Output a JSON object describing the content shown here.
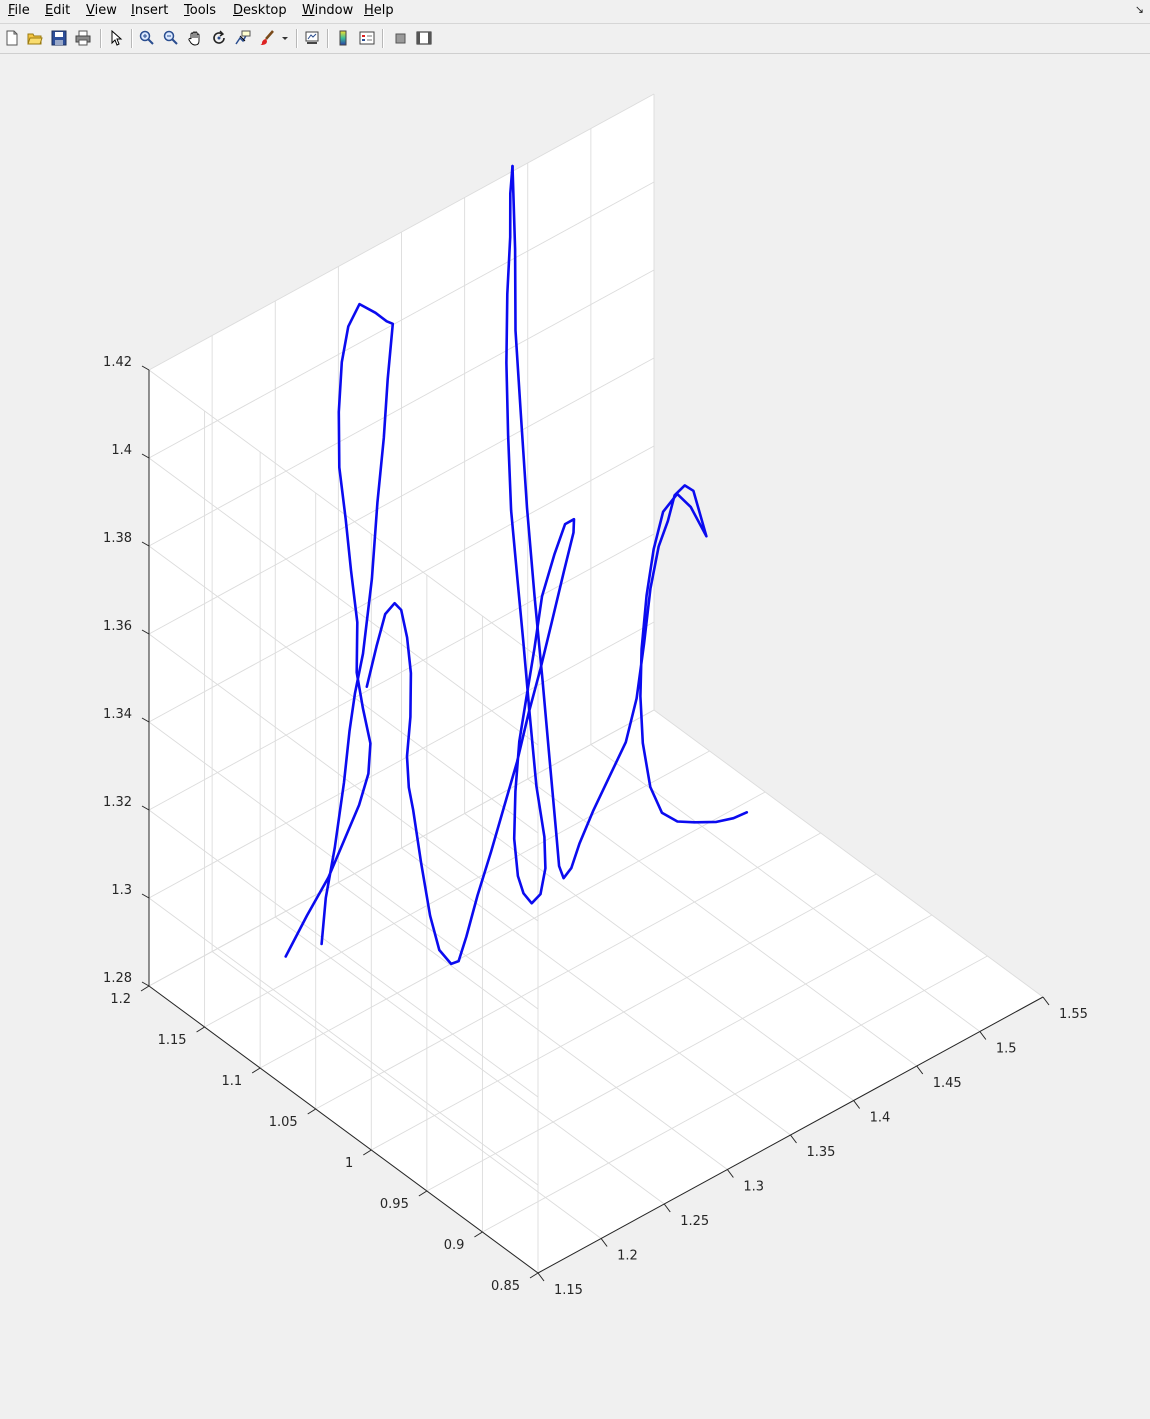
{
  "menu": {
    "file": "File",
    "edit": "Edit",
    "view": "View",
    "insert": "Insert",
    "tools": "Tools",
    "desktop": "Desktop",
    "window": "Window",
    "help": "Help"
  },
  "toolbar_icons": [
    "new-figure-icon",
    "open-file-icon",
    "save-icon",
    "print-icon",
    "edit-plot-icon",
    "zoom-in-icon",
    "zoom-out-icon",
    "pan-icon",
    "rotate-3d-icon",
    "data-cursor-icon",
    "brush-icon",
    "link-plot-icon",
    "colorbar-icon",
    "legend-icon",
    "hide-plot-tools-icon",
    "show-plot-tools-icon"
  ],
  "colors": {
    "line": "#0b0bef",
    "axes_background": "#ffffff",
    "figure_background": "#f0f0f0",
    "grid": "#dcdcdc",
    "axis": "#262626"
  },
  "chart_data": {
    "type": "line",
    "projection": "3d",
    "view": {
      "azimuth": -37.5,
      "elevation": 30
    },
    "grid": true,
    "box": false,
    "title": "",
    "xlabel": "",
    "ylabel": "",
    "zlabel": "",
    "xlim": [
      1.15,
      1.55
    ],
    "ylim": [
      0.85,
      1.2
    ],
    "zlim": [
      1.28,
      1.42
    ],
    "xticks": [
      1.15,
      1.2,
      1.25,
      1.3,
      1.35,
      1.4,
      1.45,
      1.5,
      1.55
    ],
    "xtick_labels": [
      "1.15",
      "1.2",
      "1.25",
      "1.3",
      "1.35",
      "1.4",
      "1.45",
      "1.5",
      "1.55"
    ],
    "yticks": [
      0.85,
      0.9,
      0.95,
      1,
      1.05,
      1.1,
      1.15,
      1.2
    ],
    "ytick_labels": [
      "0.85",
      "0.9",
      "0.95",
      "1",
      "1.05",
      "1.1",
      "1.15",
      "1.2"
    ],
    "zticks": [
      1.28,
      1.3,
      1.32,
      1.34,
      1.36,
      1.38,
      1.4,
      1.42
    ],
    "ztick_labels": [
      "1.28",
      "1.3",
      "1.32",
      "1.34",
      "1.36",
      "1.38",
      "1.4",
      "1.42"
    ],
    "series": [
      {
        "points": [
          [
            1.187,
            1.119,
            1.296
          ],
          [
            1.203,
            1.118,
            1.303
          ],
          [
            1.22,
            1.118,
            1.309
          ],
          [
            1.233,
            1.119,
            1.315
          ],
          [
            1.246,
            1.12,
            1.321
          ],
          [
            1.256,
            1.123,
            1.326
          ],
          [
            1.262,
            1.128,
            1.331
          ],
          [
            1.264,
            1.137,
            1.337
          ],
          [
            1.267,
            1.146,
            1.343
          ],
          [
            1.271,
            1.15,
            1.353
          ],
          [
            1.273,
            1.158,
            1.363
          ],
          [
            1.275,
            1.165,
            1.373
          ],
          [
            1.277,
            1.173,
            1.383
          ],
          [
            1.281,
            1.178,
            1.394
          ],
          [
            1.286,
            1.181,
            1.404
          ],
          [
            1.292,
            1.182,
            1.411
          ],
          [
            1.3,
            1.181,
            1.415
          ],
          [
            1.31,
            1.178,
            1.412
          ],
          [
            1.318,
            1.177,
            1.409
          ],
          [
            1.322,
            1.176,
            1.408
          ],
          [
            1.31,
            1.167,
            1.399
          ],
          [
            1.299,
            1.158,
            1.389
          ],
          [
            1.286,
            1.149,
            1.378
          ],
          [
            1.272,
            1.138,
            1.365
          ],
          [
            1.257,
            1.129,
            1.352
          ],
          [
            1.248,
            1.126,
            1.345
          ],
          [
            1.241,
            1.123,
            1.338
          ],
          [
            1.234,
            1.12,
            1.328
          ],
          [
            1.225,
            1.118,
            1.315
          ],
          [
            1.217,
            1.117,
            1.305
          ],
          [
            1.211,
            1.114,
            1.296
          ]
        ]
      },
      {
        "points": [
          [
            1.26,
            1.129,
            1.344
          ],
          [
            1.273,
            1.135,
            1.35
          ],
          [
            1.286,
            1.142,
            1.354
          ],
          [
            1.297,
            1.146,
            1.354
          ],
          [
            1.304,
            1.148,
            1.351
          ],
          [
            1.306,
            1.145,
            1.345
          ],
          [
            1.302,
            1.137,
            1.339
          ],
          [
            1.291,
            1.125,
            1.333
          ],
          [
            1.276,
            1.111,
            1.329
          ],
          [
            1.266,
            1.098,
            1.326
          ],
          [
            1.265,
            1.093,
            1.322
          ],
          [
            1.266,
            1.087,
            1.311
          ],
          [
            1.267,
            1.08,
            1.3
          ],
          [
            1.269,
            1.074,
            1.293
          ],
          [
            1.274,
            1.069,
            1.29
          ],
          [
            1.279,
            1.068,
            1.29
          ],
          [
            1.287,
            1.07,
            1.294
          ],
          [
            1.301,
            1.076,
            1.3
          ],
          [
            1.318,
            1.083,
            1.306
          ],
          [
            1.334,
            1.09,
            1.312
          ],
          [
            1.35,
            1.096,
            1.319
          ],
          [
            1.365,
            1.103,
            1.326
          ],
          [
            1.38,
            1.109,
            1.333
          ],
          [
            1.394,
            1.115,
            1.34
          ],
          [
            1.41,
            1.122,
            1.348
          ],
          [
            1.422,
            1.127,
            1.354
          ],
          [
            1.425,
            1.13,
            1.356
          ],
          [
            1.418,
            1.13,
            1.356
          ],
          [
            1.405,
            1.125,
            1.352
          ],
          [
            1.39,
            1.119,
            1.346
          ],
          [
            1.376,
            1.11,
            1.338
          ],
          [
            1.363,
            1.102,
            1.331
          ],
          [
            1.35,
            1.094,
            1.324
          ],
          [
            1.339,
            1.085,
            1.316
          ],
          [
            1.331,
            1.077,
            1.308
          ],
          [
            1.326,
            1.068,
            1.302
          ],
          [
            1.326,
            1.063,
            1.299
          ],
          [
            1.329,
            1.059,
            1.297
          ],
          [
            1.336,
            1.059,
            1.298
          ],
          [
            1.346,
            1.066,
            1.301
          ],
          [
            1.354,
            1.076,
            1.305
          ],
          [
            1.36,
            1.09,
            1.313
          ],
          [
            1.368,
            1.105,
            1.325
          ],
          [
            1.376,
            1.12,
            1.338
          ],
          [
            1.383,
            1.133,
            1.348
          ],
          [
            1.391,
            1.148,
            1.36
          ],
          [
            1.401,
            1.162,
            1.373
          ],
          [
            1.412,
            1.176,
            1.385
          ],
          [
            1.425,
            1.19,
            1.396
          ],
          [
            1.437,
            1.201,
            1.405
          ],
          [
            1.445,
            1.21,
            1.412
          ],
          [
            1.452,
            1.216,
            1.416
          ]
        ]
      },
      {
        "points": [
          [
            1.452,
            1.216,
            1.416
          ],
          [
            1.44,
            1.2,
            1.402
          ],
          [
            1.428,
            1.186,
            1.388
          ],
          [
            1.418,
            1.17,
            1.374
          ],
          [
            1.408,
            1.153,
            1.357
          ],
          [
            1.4,
            1.137,
            1.341
          ],
          [
            1.393,
            1.122,
            1.326
          ],
          [
            1.386,
            1.107,
            1.31
          ],
          [
            1.381,
            1.096,
            1.298
          ],
          [
            1.378,
            1.09,
            1.292
          ],
          [
            1.378,
            1.086,
            1.29
          ],
          [
            1.385,
            1.087,
            1.291
          ],
          [
            1.396,
            1.092,
            1.294
          ],
          [
            1.411,
            1.097,
            1.298
          ],
          [
            1.428,
            1.102,
            1.302
          ],
          [
            1.444,
            1.105,
            1.307
          ],
          [
            1.457,
            1.11,
            1.314
          ],
          [
            1.47,
            1.118,
            1.323
          ],
          [
            1.482,
            1.126,
            1.332
          ],
          [
            1.493,
            1.131,
            1.339
          ],
          [
            1.502,
            1.133,
            1.343
          ],
          [
            1.51,
            1.136,
            1.347
          ],
          [
            1.518,
            1.136,
            1.348
          ],
          [
            1.524,
            1.135,
            1.346
          ],
          [
            1.529,
            1.129,
            1.336
          ],
          [
            1.528,
            1.13,
            1.337
          ],
          [
            1.521,
            1.134,
            1.343
          ],
          [
            1.512,
            1.136,
            1.347
          ],
          [
            1.5,
            1.135,
            1.345
          ],
          [
            1.489,
            1.131,
            1.339
          ],
          [
            1.479,
            1.126,
            1.331
          ],
          [
            1.468,
            1.118,
            1.322
          ],
          [
            1.46,
            1.11,
            1.314
          ],
          [
            1.454,
            1.101,
            1.306
          ],
          [
            1.452,
            1.092,
            1.298
          ],
          [
            1.455,
            1.085,
            1.293
          ],
          [
            1.462,
            1.079,
            1.291
          ],
          [
            1.472,
            1.075,
            1.29
          ],
          [
            1.485,
            1.07,
            1.289
          ],
          [
            1.495,
            1.066,
            1.289
          ],
          [
            1.502,
            1.062,
            1.29
          ]
        ]
      }
    ]
  }
}
